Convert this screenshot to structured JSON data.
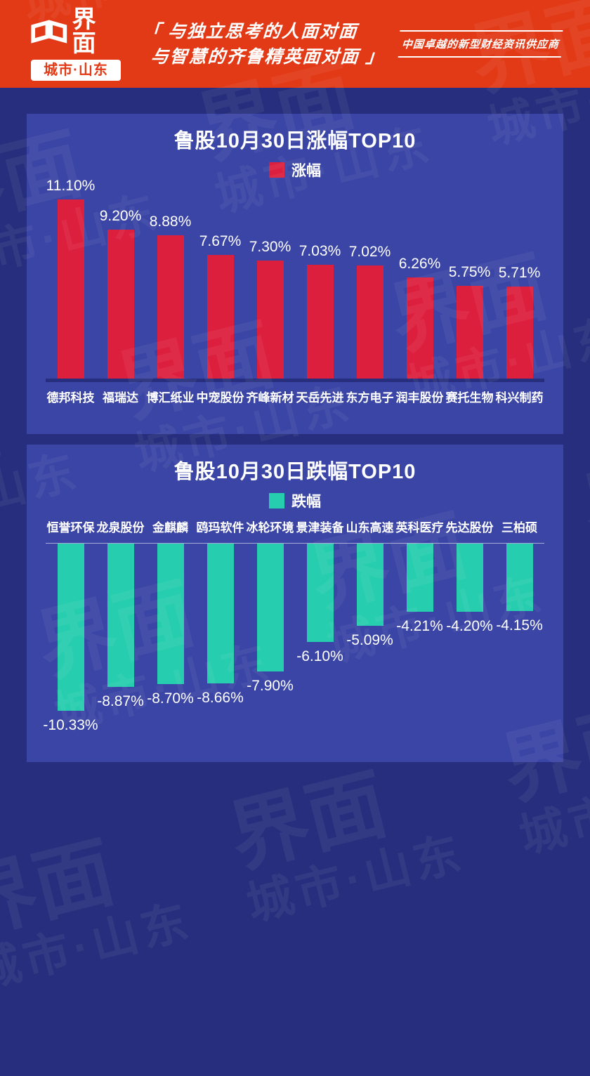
{
  "header": {
    "logo": {
      "brand": "界面",
      "sub": "城市·山东"
    },
    "tagline_line1": "「 与独立思考的人面对面",
    "tagline_line2": "与智慧的齐鲁精英面对面 」",
    "slogan": "中国卓越的新型财经资讯供应商"
  },
  "watermark": {
    "brand": "界面",
    "sub": "城市·山东"
  },
  "colors": {
    "header_red": "#E23A17",
    "page_bg": "#272E7D",
    "card_bg": "#3A45A5",
    "gain_red": "#DC1F3D",
    "loss_teal": "#26CDAE"
  },
  "chart_data": [
    {
      "type": "bar",
      "title": "鲁股10月30日涨幅TOP10",
      "legend": "涨幅",
      "legend_position": "top",
      "bar_color": "#DC1F3D",
      "grid": false,
      "ylim": [
        0,
        12
      ],
      "categories": [
        "德邦科技",
        "福瑞达",
        "博汇纸业",
        "中宠股份",
        "齐峰新材",
        "天岳先进",
        "东方电子",
        "润丰股份",
        "赛托生物",
        "科兴制药"
      ],
      "values": [
        11.1,
        9.2,
        8.88,
        7.67,
        7.3,
        7.03,
        7.02,
        6.26,
        5.75,
        5.71
      ],
      "value_labels": [
        "11.10%",
        "9.20%",
        "8.88%",
        "7.67%",
        "7.30%",
        "7.03%",
        "7.02%",
        "6.26%",
        "5.75%",
        "5.71%"
      ]
    },
    {
      "type": "bar",
      "title": "鲁股10月30日跌幅TOP10",
      "legend": "跌幅",
      "legend_position": "top",
      "bar_color": "#26CDAE",
      "grid": false,
      "ylim": [
        -11,
        0
      ],
      "categories": [
        "恒誉环保",
        "龙泉股份",
        "金麒麟",
        "鸥玛软件",
        "冰轮环境",
        "景津装备",
        "山东高速",
        "英科医疗",
        "先达股份",
        "三柏硕"
      ],
      "values": [
        -10.33,
        -8.87,
        -8.7,
        -8.66,
        -7.9,
        -6.1,
        -5.09,
        -4.21,
        -4.2,
        -4.15
      ],
      "value_labels": [
        "-10.33%",
        "-8.87%",
        "-8.70%",
        "-8.66%",
        "-7.90%",
        "-6.10%",
        "-5.09%",
        "-4.21%",
        "-4.20%",
        "-4.15%"
      ]
    }
  ]
}
